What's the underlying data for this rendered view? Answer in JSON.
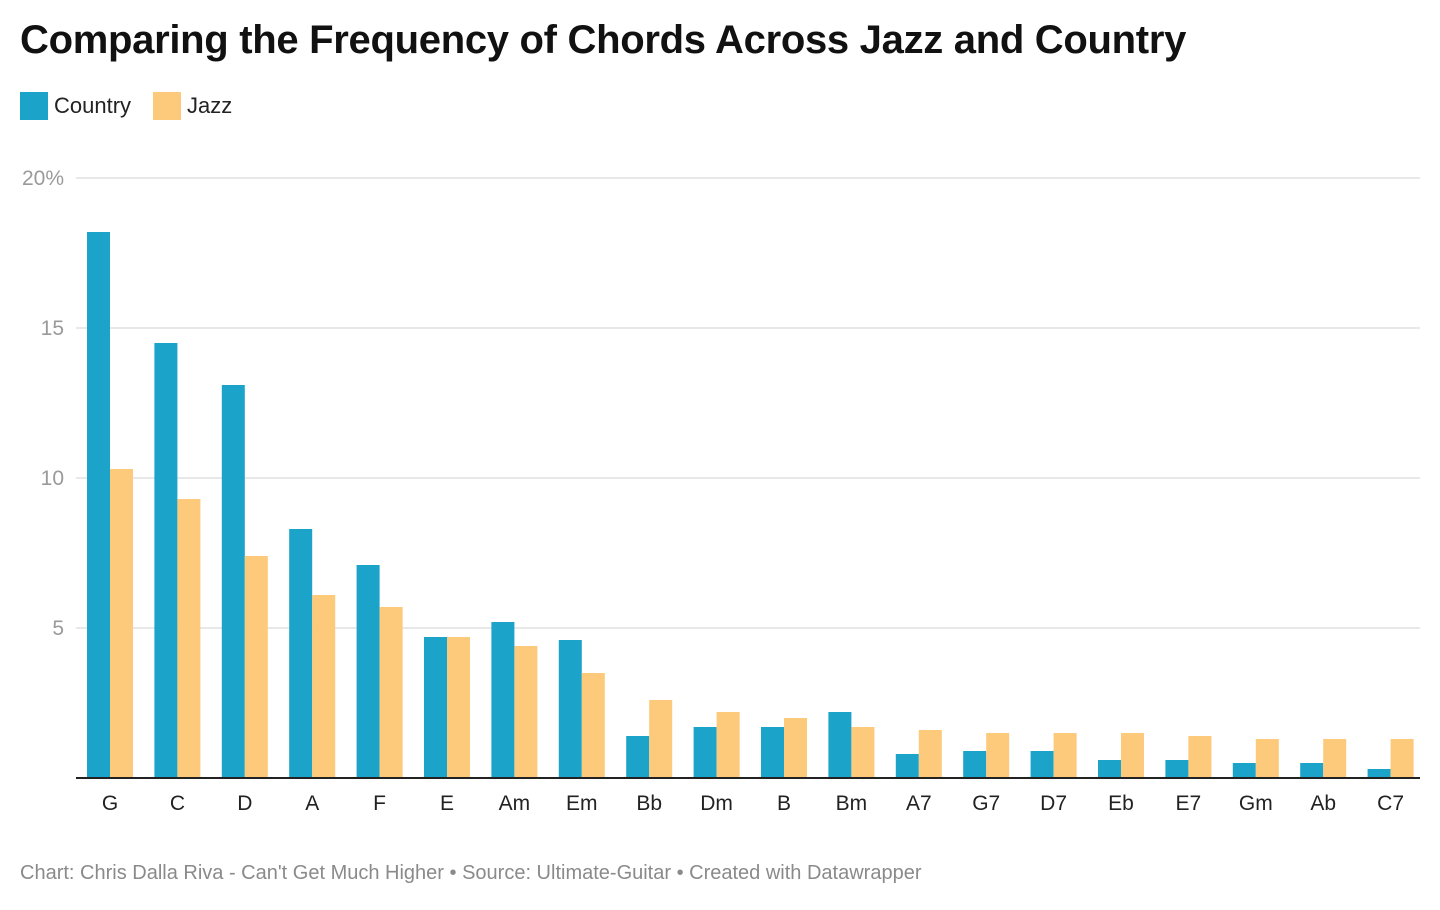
{
  "chart_data": {
    "type": "bar",
    "title": "Comparing the Frequency of Chords Across Jazz and Country",
    "categories": [
      "G",
      "C",
      "D",
      "A",
      "F",
      "E",
      "Am",
      "Em",
      "Bb",
      "Dm",
      "B",
      "Bm",
      "A7",
      "G7",
      "D7",
      "Eb",
      "E7",
      "Gm",
      "Ab",
      "C7"
    ],
    "series": [
      {
        "name": "Country",
        "color": "#1ba3c9",
        "values": [
          18.2,
          14.5,
          13.1,
          8.3,
          7.1,
          4.7,
          5.2,
          4.6,
          1.4,
          1.7,
          1.7,
          2.2,
          0.8,
          0.9,
          0.9,
          0.6,
          0.6,
          0.5,
          0.5,
          0.3
        ]
      },
      {
        "name": "Jazz",
        "color": "#fdc97a",
        "values": [
          10.3,
          9.3,
          7.4,
          6.1,
          5.7,
          4.7,
          4.4,
          3.5,
          2.6,
          2.2,
          2.0,
          1.7,
          1.6,
          1.5,
          1.5,
          1.5,
          1.4,
          1.3,
          1.3,
          1.3
        ]
      }
    ],
    "ylim": [
      0,
      20
    ],
    "yticks": [
      {
        "value": 5,
        "label": "5"
      },
      {
        "value": 10,
        "label": "10"
      },
      {
        "value": 15,
        "label": "15"
      },
      {
        "value": 20,
        "label": "20%"
      }
    ],
    "grid": true,
    "legend_position": "top-left",
    "xlabel": "",
    "ylabel": ""
  },
  "footer": {
    "text": "Chart: Chris Dalla Riva - Can't Get Much Higher • Source: Ultimate-Guitar • Created with Datawrapper"
  }
}
